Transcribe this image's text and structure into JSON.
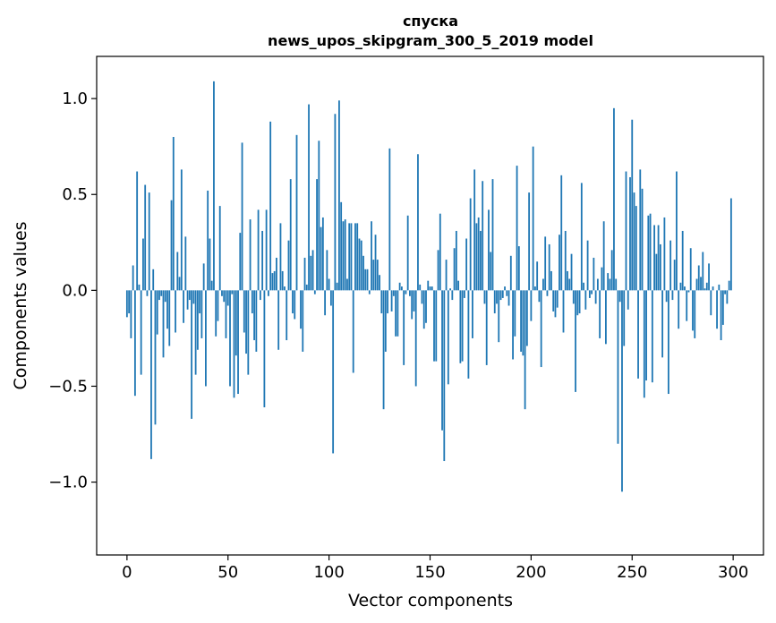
{
  "chart_data": {
    "type": "bar",
    "title": "спуска",
    "subtitle": "news_upos_skipgram_300_5_2019 model",
    "xlabel": "Vector components",
    "ylabel": "Components values",
    "xlim": [
      -15,
      315
    ],
    "ylim": [
      -1.38,
      1.22
    ],
    "x_ticks": [
      0,
      50,
      100,
      150,
      200,
      250,
      300
    ],
    "y_ticks": [
      -1.0,
      -0.5,
      0.0,
      0.5,
      1.0
    ],
    "y_tick_labels": [
      "−1.0",
      "−0.5",
      "0.0",
      "0.5",
      "1.0"
    ],
    "bar_color": "#1f77b4",
    "values": [
      -0.14,
      -0.12,
      -0.25,
      0.13,
      -0.55,
      0.62,
      0.03,
      -0.44,
      0.27,
      0.55,
      -0.03,
      0.51,
      -0.88,
      0.11,
      -0.7,
      -0.23,
      -0.05,
      -0.03,
      -0.35,
      -0.06,
      -0.2,
      -0.29,
      0.47,
      0.8,
      -0.22,
      0.2,
      0.07,
      0.63,
      -0.17,
      0.28,
      -0.1,
      -0.05,
      -0.67,
      -0.07,
      -0.44,
      -0.31,
      -0.12,
      -0.25,
      0.14,
      -0.5,
      0.52,
      0.27,
      0.05,
      1.09,
      -0.24,
      -0.16,
      0.44,
      -0.03,
      -0.06,
      -0.25,
      -0.08,
      -0.5,
      -0.02,
      -0.56,
      -0.34,
      -0.54,
      0.3,
      0.77,
      -0.22,
      -0.33,
      -0.44,
      0.37,
      -0.12,
      -0.26,
      -0.32,
      0.42,
      -0.05,
      0.31,
      -0.61,
      0.42,
      -0.03,
      0.88,
      0.09,
      0.1,
      0.17,
      -0.31,
      0.35,
      0.1,
      0.02,
      -0.26,
      0.26,
      0.58,
      -0.12,
      -0.15,
      0.81,
      0.0,
      -0.2,
      -0.32,
      0.17,
      0.03,
      0.97,
      0.18,
      0.21,
      -0.02,
      0.58,
      0.78,
      0.33,
      0.38,
      -0.13,
      0.21,
      0.06,
      -0.08,
      -0.85,
      0.92,
      0.04,
      0.99,
      0.46,
      0.36,
      0.37,
      0.06,
      0.35,
      0.35,
      -0.43,
      0.35,
      0.35,
      0.27,
      0.26,
      0.18,
      0.11,
      0.11,
      -0.02,
      0.36,
      0.16,
      0.29,
      0.16,
      0.08,
      -0.12,
      -0.62,
      -0.32,
      -0.12,
      0.74,
      -0.11,
      -0.03,
      -0.24,
      -0.24,
      0.04,
      0.02,
      -0.39,
      -0.02,
      0.39,
      -0.03,
      -0.15,
      -0.11,
      -0.5,
      0.71,
      0.03,
      -0.07,
      -0.2,
      -0.17,
      0.05,
      0.02,
      0.02,
      -0.37,
      -0.37,
      0.21,
      0.4,
      -0.73,
      -0.89,
      0.16,
      -0.49,
      0.01,
      -0.05,
      0.22,
      0.31,
      0.05,
      -0.38,
      -0.37,
      -0.04,
      0.27,
      -0.46,
      0.48,
      -0.25,
      0.63,
      0.35,
      0.38,
      0.31,
      0.57,
      -0.07,
      -0.39,
      0.42,
      0.2,
      0.58,
      -0.12,
      -0.07,
      -0.27,
      -0.05,
      -0.04,
      0.02,
      -0.03,
      -0.08,
      0.18,
      -0.36,
      -0.24,
      0.65,
      0.23,
      -0.32,
      -0.34,
      -0.62,
      -0.29,
      0.51,
      -0.16,
      0.75,
      0.02,
      0.15,
      -0.06,
      -0.4,
      0.06,
      0.28,
      -0.03,
      0.24,
      0.1,
      -0.11,
      -0.14,
      -0.09,
      0.29,
      0.6,
      -0.22,
      0.31,
      0.1,
      0.06,
      0.19,
      -0.07,
      -0.53,
      -0.13,
      -0.12,
      0.56,
      0.04,
      -0.1,
      0.26,
      -0.04,
      -0.02,
      0.17,
      -0.07,
      0.06,
      -0.25,
      0.12,
      0.36,
      -0.28,
      0.09,
      0.06,
      0.21,
      0.95,
      0.06,
      -0.8,
      -0.06,
      -1.05,
      -0.29,
      0.62,
      -0.1,
      0.59,
      0.89,
      0.51,
      0.44,
      -0.46,
      0.63,
      0.53,
      -0.56,
      -0.47,
      0.39,
      0.4,
      -0.48,
      0.34,
      0.19,
      0.34,
      0.24,
      -0.35,
      0.38,
      -0.06,
      -0.54,
      0.26,
      -0.05,
      0.16,
      0.62,
      -0.2,
      0.04,
      0.31,
      0.02,
      -0.16,
      -0.01,
      0.22,
      -0.21,
      -0.25,
      0.06,
      0.13,
      0.07,
      0.2,
      0.01,
      0.04,
      0.14,
      -0.13,
      0.02,
      0.0,
      -0.2,
      0.03,
      -0.26,
      -0.18,
      -0.02,
      -0.07,
      0.05,
      0.48
    ]
  }
}
